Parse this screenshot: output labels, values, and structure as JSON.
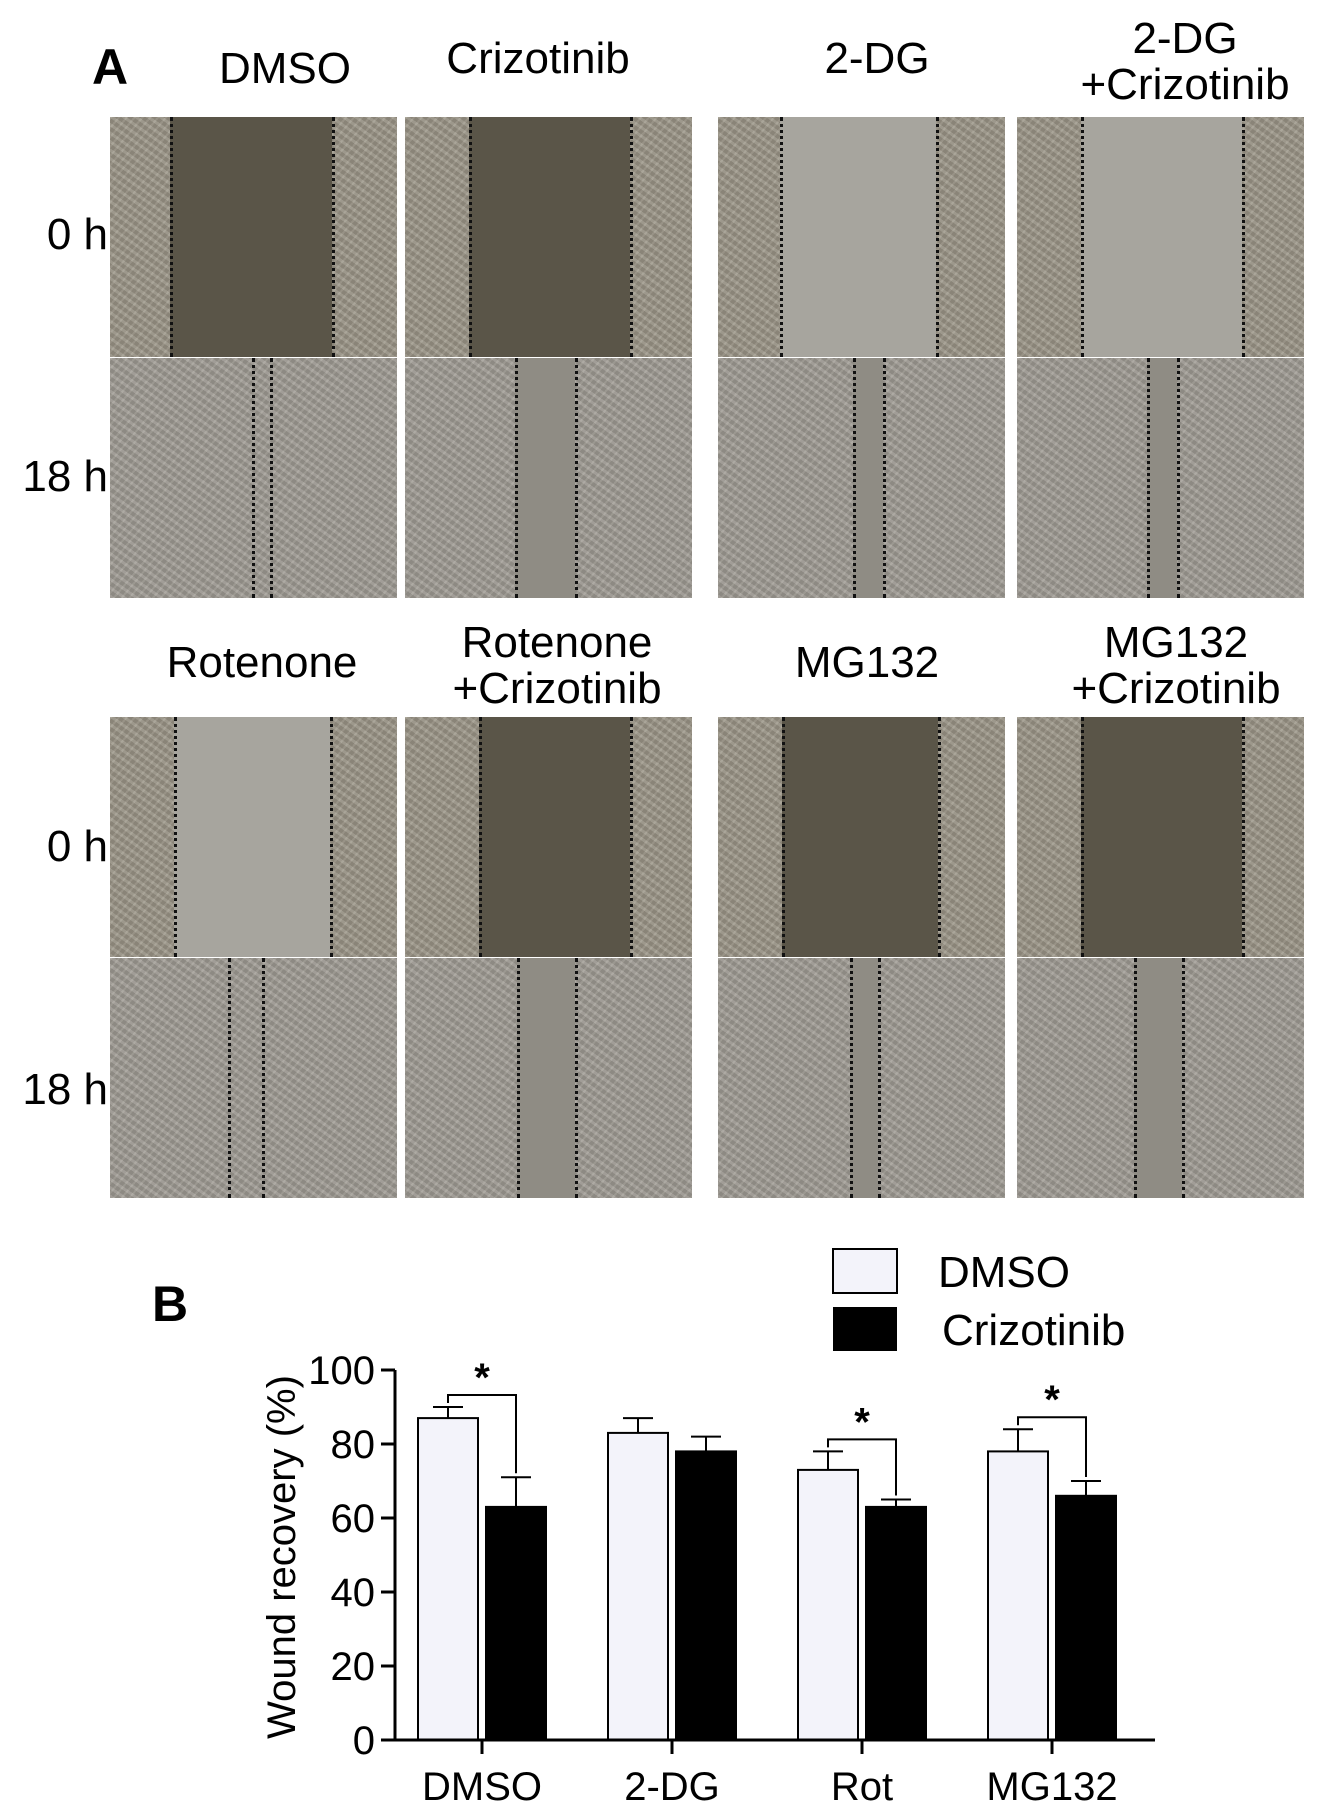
{
  "panel_a": {
    "letter": "A",
    "top_labels": [
      "DMSO",
      "Crizotinib",
      "2-DG",
      "2-DG\n+Crizotinib"
    ],
    "bottom_labels": [
      "Rotenone",
      "Rotenone\n+Crizotinib",
      "MG132",
      "MG132\n+Crizotinib"
    ],
    "row_labels": [
      "0 h",
      "18 h",
      "0 h",
      "18 h"
    ],
    "colors": {
      "cell_texture": "#9a9486",
      "gap_dark": "#5a5548",
      "gap_light": "#a7a59e"
    }
  },
  "panel_b": {
    "letter": "B"
  },
  "chart_data": {
    "type": "bar",
    "categories": [
      "DMSO",
      "2-DG",
      "Rot",
      "MG132"
    ],
    "series": [
      {
        "name": "DMSO",
        "values": [
          87,
          83,
          73,
          78
        ],
        "errors": [
          3,
          4,
          5,
          6
        ],
        "color": "#f3f3fa"
      },
      {
        "name": "Crizotinib",
        "values": [
          63,
          78,
          63,
          66
        ],
        "errors": [
          8,
          4,
          2,
          4
        ],
        "color": "#000000"
      }
    ],
    "ylabel": "Wound recovery  (%)",
    "yticks": [
      0,
      20,
      40,
      60,
      80,
      100
    ],
    "ylim": [
      0,
      100
    ],
    "legend_position": "top-right",
    "significance": [
      {
        "category": "DMSO",
        "label": "*"
      },
      {
        "category": "Rot",
        "label": "*"
      },
      {
        "category": "MG132",
        "label": "*"
      }
    ]
  }
}
